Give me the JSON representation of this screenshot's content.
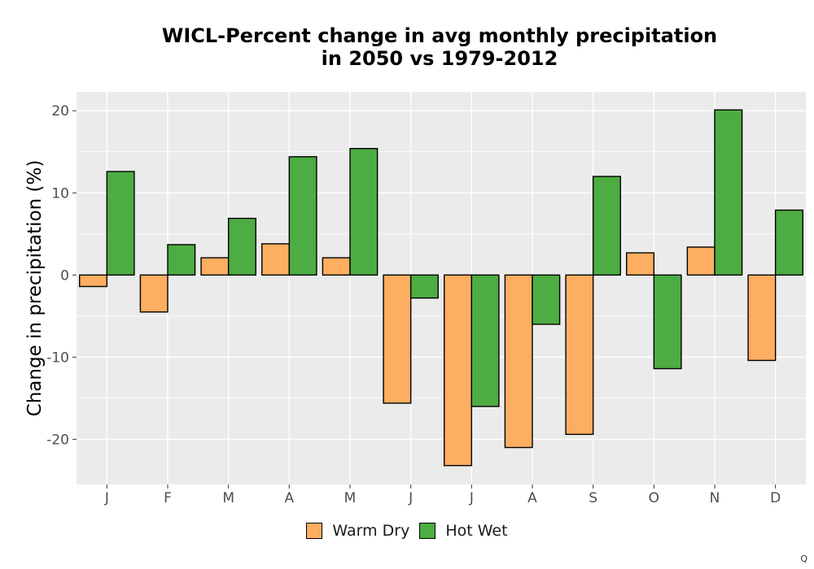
{
  "chart_data": {
    "type": "bar",
    "title_lines": [
      "WICL-Percent change in avg monthly precipitation",
      "in 2050 vs 1979-2012"
    ],
    "xlabel": "",
    "ylabel": "Change in precipitation (%)",
    "categories": [
      "J",
      "F",
      "M",
      "A",
      "M",
      "J",
      "J",
      "A",
      "S",
      "O",
      "N",
      "D"
    ],
    "series": [
      {
        "name": "Warm Dry",
        "color": "#FDAE61",
        "values": [
          -1.4,
          -4.5,
          2.1,
          3.8,
          2.1,
          -15.6,
          -23.2,
          -21.0,
          -19.4,
          2.7,
          3.4,
          -10.4
        ]
      },
      {
        "name": "Hot Wet",
        "color": "#4DAC42",
        "values": [
          12.6,
          3.7,
          6.9,
          14.4,
          15.4,
          -2.8,
          -16.0,
          -6.0,
          12.0,
          -11.4,
          20.1,
          7.9
        ]
      }
    ],
    "ylim": [
      -25.5,
      22.3
    ],
    "yticks": [
      -20,
      -10,
      0,
      10,
      20
    ],
    "ytick_labels": [
      "-20",
      "-10",
      "0",
      "10",
      "20"
    ],
    "grid": true,
    "legend_position": "bottom",
    "panel_background": "#EBEBEB"
  },
  "watermark": "Q"
}
